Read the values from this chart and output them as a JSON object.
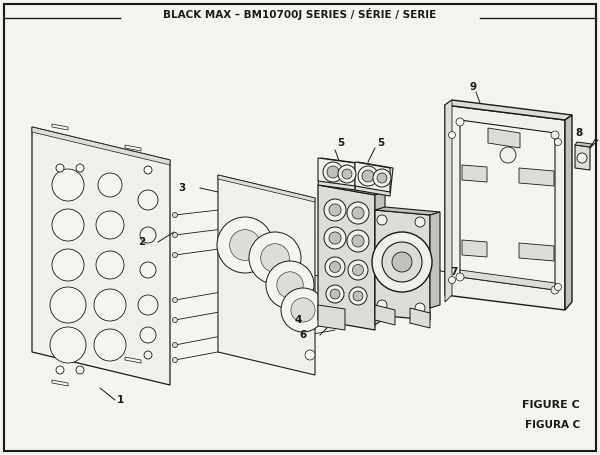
{
  "title": "BLACK MAX – BM10700J SERIES / SÉRIE / SERIE",
  "figure_label": "FIGURE C",
  "figura_label": "FIGURA C",
  "bg_color": "#f5f5f0",
  "border_color": "#000000",
  "line_color": "#1a1a1a",
  "fill_light": "#f0f0ec",
  "fill_mid": "#dcdcd8",
  "fill_dark": "#c0c0bc",
  "title_fontsize": 7.5,
  "label_fontsize": 7.5,
  "fig_label_fontsize": 8
}
